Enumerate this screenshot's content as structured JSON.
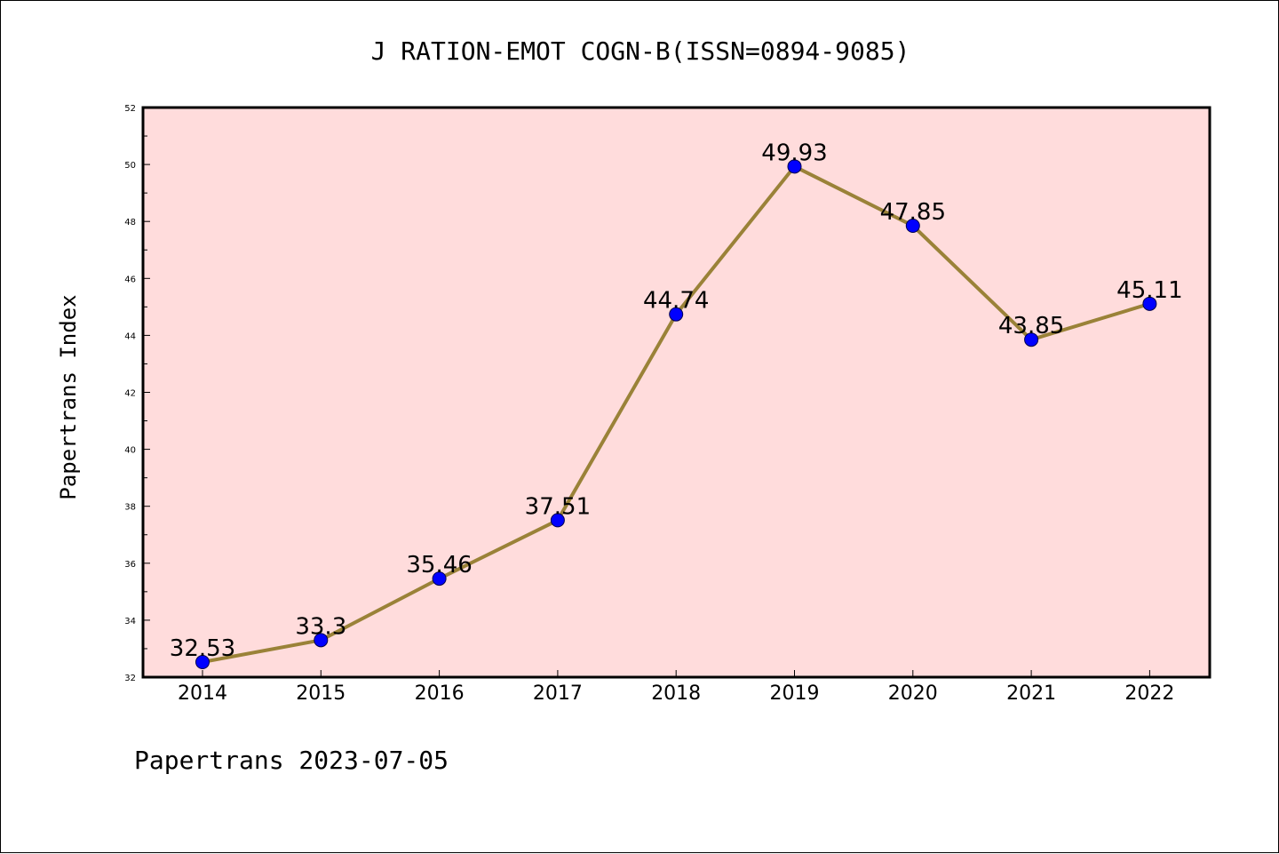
{
  "chart_data": {
    "type": "line",
    "title": "J RATION-EMOT COGN-B(ISSN=0894-9085)",
    "xlabel": "",
    "ylabel": "Papertrans Index",
    "categories": [
      "2014",
      "2015",
      "2016",
      "2017",
      "2018",
      "2019",
      "2020",
      "2021",
      "2022"
    ],
    "series": [
      {
        "values": [
          32.53,
          33.3,
          35.46,
          37.51,
          44.74,
          49.93,
          47.85,
          43.85,
          45.11
        ],
        "labels": [
          "32.53",
          "33.3",
          "35.46",
          "37.51",
          "44.74",
          "49.93",
          "47.85",
          "43.85",
          "45.11"
        ]
      }
    ],
    "ylim": [
      32,
      52
    ],
    "yticks": [
      "32",
      "34",
      "36",
      "38",
      "40",
      "42",
      "44",
      "46",
      "48",
      "50",
      "52"
    ],
    "grid": false,
    "colors": {
      "plot_background": "#ffdcdc",
      "line": "#9a8238",
      "marker": "#0000ff"
    }
  },
  "footer": "Papertrans 2023-07-05"
}
